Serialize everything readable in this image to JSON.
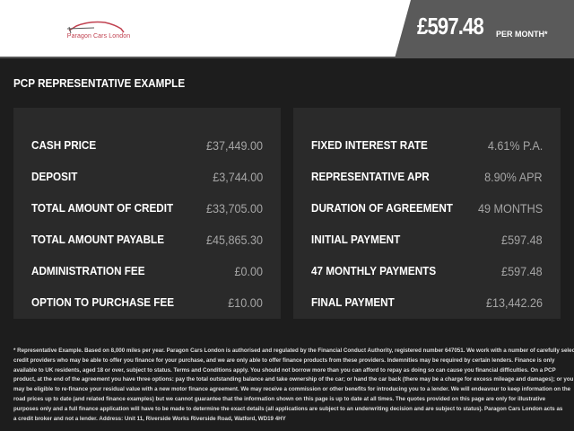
{
  "header": {
    "logo_text": "Paragon Cars London",
    "price": "£597.48",
    "per_month": "PER MONTH*"
  },
  "section_title": "PCP REPRESENTATIVE EXAMPLE",
  "left_panel": [
    {
      "label": "CASH PRICE",
      "value": "£37,449.00"
    },
    {
      "label": "DEPOSIT",
      "value": "£3,744.00"
    },
    {
      "label": "TOTAL AMOUNT OF CREDIT",
      "value": "£33,705.00"
    },
    {
      "label": "TOTAL AMOUNT PAYABLE",
      "value": "£45,865.30"
    },
    {
      "label": "ADMINISTRATION FEE",
      "value": "£0.00"
    },
    {
      "label": "OPTION TO PURCHASE FEE",
      "value": "£10.00"
    }
  ],
  "right_panel": [
    {
      "label": "FIXED INTEREST RATE",
      "value": "4.61% P.A."
    },
    {
      "label": "REPRESENTATIVE APR",
      "value": "8.90% APR"
    },
    {
      "label": "DURATION OF AGREEMENT",
      "value": "49 MONTHS"
    },
    {
      "label": "INITIAL PAYMENT",
      "value": "£597.48"
    },
    {
      "label": "47 MONTHLY PAYMENTS",
      "value": "£597.48"
    },
    {
      "label": "FINAL PAYMENT",
      "value": "£13,442.26"
    }
  ],
  "footer_lines": [
    "* Representative Example. Based on 8,000 miles per year. Paragon Cars London is authorised and regulated by the Financial Conduct Authority, registered number 647051. We work with a number of carefully selected",
    "credit providers who may be able to offer you finance for your purchase, and we are only able to offer finance products from these providers. Indemnities may be required by certain lenders. Finance is only",
    "available to UK residents, aged 18 or over, subject to status. Terms and Conditions apply. You should not borrow more than you can afford to repay as doing so can cause you financial difficulties. On a PCP",
    "product, at the end of the agreement you have three options: pay the total outstanding balance and take ownership of the car; or hand the car back (there may be a charge for excess mileage and damages); or you",
    "may be eligible to re-finance your residual value with a new motor finance agreement. We may receive a commission or other benefits for introducing you to a lender. We will endeavour to keep information on the",
    "road prices up to date (and related finance examples) but we cannot guarantee that the information shown on this page is up to date at all times. The quotes provided on this page are only for illustrative",
    "purposes only and a full finance application will have to be made to determine the exact details (all applications are subject to an underwriting decision and are subject to status). Paragon Cars London acts as",
    "a credit broker and not a lender. Address: Unit 11, Riverside Works Riverside Road, Watford, WD19 4HY"
  ]
}
